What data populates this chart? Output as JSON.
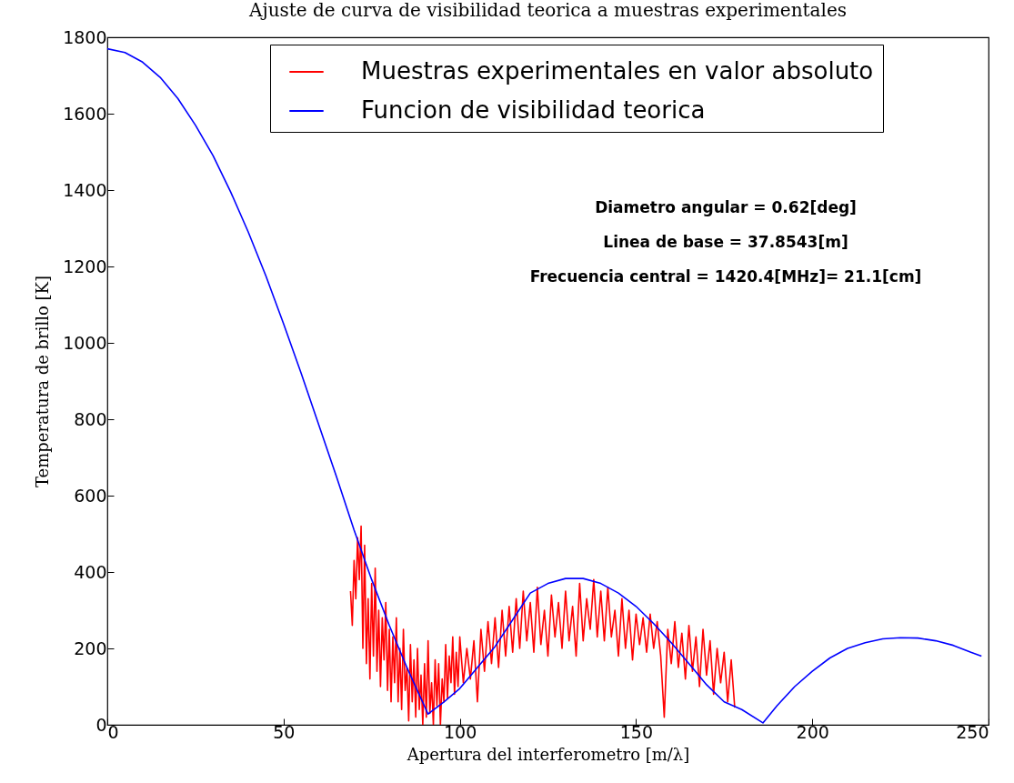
{
  "chart_data": {
    "type": "line",
    "title": "Ajuste de curva de visibilidad teorica a muestras experimentales",
    "xlabel": "Apertura del interferometro [m/λ]",
    "ylabel": "Temperatura de brillo [K]",
    "xlim": [
      0,
      250
    ],
    "xticks": [
      0,
      50,
      100,
      150,
      200,
      250
    ],
    "ylim": [
      0,
      1800
    ],
    "yticks": [
      0,
      200,
      400,
      600,
      800,
      1000,
      1200,
      1400,
      1600,
      1800
    ],
    "grid": false,
    "legend": "top right",
    "annotations": [
      "Diametro angular = 0.62[deg]",
      "Linea de base = 37.8543[m]",
      "Frecuencia central = 1420.4[MHz]= 21.1[cm]"
    ],
    "series": [
      {
        "name": "Muestras experimentales en valor absoluto",
        "color": "#ff0000",
        "x": [
          69,
          69.5,
          70,
          70.5,
          71,
          71.5,
          72,
          72.5,
          73,
          73.5,
          74,
          74.5,
          75,
          75.5,
          76,
          76.5,
          77,
          77.5,
          78,
          78.5,
          79,
          79.5,
          80,
          80.5,
          81,
          81.5,
          82,
          82.5,
          83,
          83.5,
          84,
          84.5,
          85,
          85.5,
          86,
          86.5,
          87,
          87.5,
          88,
          88.5,
          89,
          89.5,
          90,
          90.5,
          91,
          91.5,
          92,
          92.5,
          93,
          93.5,
          94,
          94.5,
          95,
          95.5,
          96,
          96.5,
          97,
          97.5,
          98,
          98.5,
          99,
          99.5,
          100,
          101,
          102,
          103,
          104,
          105,
          106,
          107,
          108,
          109,
          110,
          111,
          112,
          113,
          114,
          115,
          116,
          117,
          118,
          119,
          120,
          121,
          122,
          123,
          124,
          125,
          126,
          127,
          128,
          129,
          130,
          131,
          132,
          133,
          134,
          135,
          136,
          137,
          138,
          139,
          140,
          141,
          142,
          143,
          144,
          145,
          146,
          147,
          148,
          149,
          150,
          151,
          152,
          153,
          154,
          155,
          156,
          157,
          158,
          159,
          160,
          161,
          162,
          163,
          164,
          165,
          166,
          167,
          168,
          169,
          170,
          171,
          172,
          173,
          174,
          175,
          176,
          177,
          178
        ],
        "values": [
          350,
          260,
          430,
          330,
          490,
          380,
          520,
          200,
          470,
          160,
          330,
          120,
          370,
          180,
          410,
          140,
          300,
          100,
          280,
          170,
          320,
          90,
          250,
          60,
          230,
          110,
          280,
          60,
          200,
          40,
          250,
          90,
          150,
          10,
          210,
          60,
          170,
          20,
          200,
          40,
          130,
          0,
          160,
          20,
          220,
          30,
          110,
          0,
          170,
          50,
          160,
          0,
          120,
          60,
          210,
          70,
          180,
          110,
          230,
          80,
          190,
          100,
          230,
          110,
          200,
          120,
          220,
          60,
          250,
          140,
          270,
          160,
          280,
          150,
          300,
          180,
          310,
          190,
          330,
          200,
          350,
          220,
          320,
          190,
          360,
          210,
          300,
          180,
          340,
          230,
          320,
          200,
          350,
          220,
          310,
          180,
          370,
          220,
          330,
          250,
          380,
          230,
          350,
          220,
          360,
          230,
          300,
          180,
          330,
          200,
          300,
          170,
          290,
          210,
          280,
          190,
          290,
          200,
          270,
          180,
          20,
          250,
          160,
          270,
          150,
          240,
          120,
          260,
          140,
          230,
          100,
          250,
          130,
          220,
          80,
          200,
          110,
          190,
          60,
          170,
          45
        ]
      },
      {
        "name": "Funcion de visibilidad teorica",
        "color": "#0000ff",
        "x": [
          0,
          5,
          10,
          15,
          20,
          25,
          30,
          35,
          40,
          45,
          50,
          55,
          60,
          65,
          70,
          75,
          80,
          85,
          91,
          95.5,
          100,
          105,
          110,
          115,
          120,
          125,
          130,
          135,
          140,
          145,
          150,
          155,
          160,
          165,
          170,
          175,
          180,
          186,
          190,
          195,
          200,
          205,
          210,
          215,
          220,
          225,
          230,
          235,
          240,
          245,
          248
        ],
        "values": [
          1770,
          1760,
          1735,
          1695,
          1640,
          1570,
          1490,
          1395,
          1290,
          1175,
          1050,
          920,
          785,
          650,
          510,
          380,
          260,
          150,
          28,
          60,
          95,
          150,
          205,
          275,
          345,
          370,
          383,
          383,
          370,
          345,
          310,
          265,
          215,
          160,
          105,
          60,
          40,
          5,
          50,
          100,
          140,
          175,
          200,
          215,
          225,
          228,
          227,
          220,
          208,
          190,
          180
        ]
      }
    ]
  }
}
